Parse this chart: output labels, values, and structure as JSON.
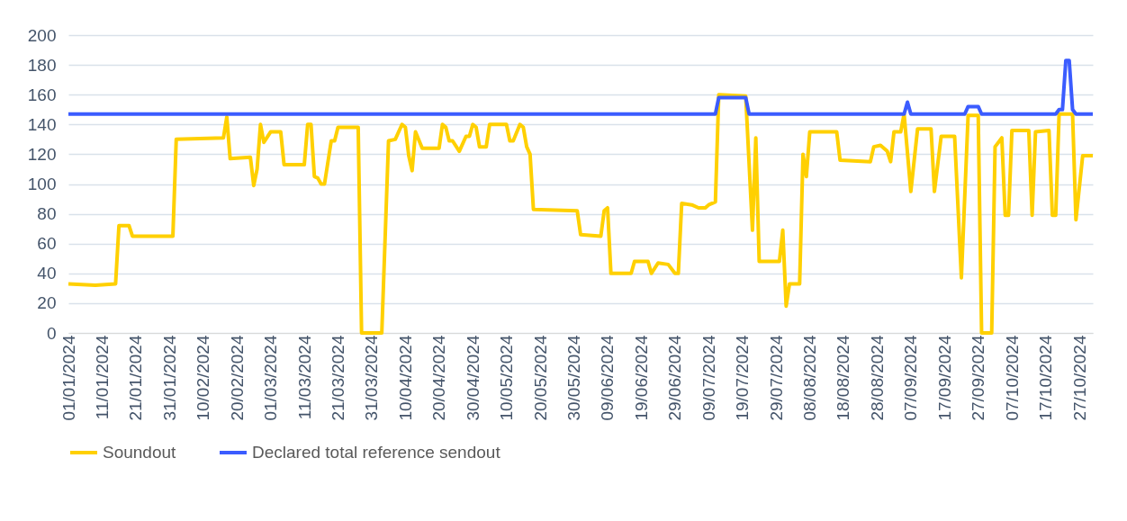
{
  "chart_data": {
    "type": "line",
    "xlim": [
      "2024-01-01",
      "2024-10-31"
    ],
    "ylim": [
      0,
      200
    ],
    "yticks": [
      0,
      20,
      40,
      60,
      80,
      100,
      120,
      140,
      160,
      180,
      200
    ],
    "xticks": [
      {
        "value": "2024-01-01",
        "label": "01/01/2024"
      },
      {
        "value": "2024-01-11",
        "label": "11/01/2024"
      },
      {
        "value": "2024-01-21",
        "label": "21/01/2024"
      },
      {
        "value": "2024-01-31",
        "label": "31/01/2024"
      },
      {
        "value": "2024-02-10",
        "label": "10/02/2024"
      },
      {
        "value": "2024-02-20",
        "label": "20/02/2024"
      },
      {
        "value": "2024-03-01",
        "label": "01/03/2024"
      },
      {
        "value": "2024-03-11",
        "label": "11/03/2024"
      },
      {
        "value": "2024-03-21",
        "label": "21/03/2024"
      },
      {
        "value": "2024-03-31",
        "label": "31/03/2024"
      },
      {
        "value": "2024-04-10",
        "label": "10/04/2024"
      },
      {
        "value": "2024-04-20",
        "label": "20/04/2024"
      },
      {
        "value": "2024-04-30",
        "label": "30/04/2024"
      },
      {
        "value": "2024-05-10",
        "label": "10/05/2024"
      },
      {
        "value": "2024-05-20",
        "label": "20/05/2024"
      },
      {
        "value": "2024-05-30",
        "label": "30/05/2024"
      },
      {
        "value": "2024-06-09",
        "label": "09/06/2024"
      },
      {
        "value": "2024-06-19",
        "label": "19/06/2024"
      },
      {
        "value": "2024-06-29",
        "label": "29/06/2024"
      },
      {
        "value": "2024-07-09",
        "label": "09/07/2024"
      },
      {
        "value": "2024-07-19",
        "label": "19/07/2024"
      },
      {
        "value": "2024-07-29",
        "label": "29/07/2024"
      },
      {
        "value": "2024-08-08",
        "label": "08/08/2024"
      },
      {
        "value": "2024-08-18",
        "label": "18/08/2024"
      },
      {
        "value": "2024-08-28",
        "label": "28/08/2024"
      },
      {
        "value": "2024-09-07",
        "label": "07/09/2024"
      },
      {
        "value": "2024-09-17",
        "label": "17/09/2024"
      },
      {
        "value": "2024-09-27",
        "label": "27/09/2024"
      },
      {
        "value": "2024-10-07",
        "label": "07/10/2024"
      },
      {
        "value": "2024-10-17",
        "label": "17/10/2024"
      },
      {
        "value": "2024-10-27",
        "label": "27/10/2024"
      }
    ],
    "grid": "y",
    "legend": "bottom",
    "line_style": "solid",
    "series": [
      {
        "name": "Soundout",
        "color": "#ffd000",
        "x": [
          "2024-01-01",
          "2024-01-09",
          "2024-01-15",
          "2024-01-16",
          "2024-01-19",
          "2024-01-20",
          "2024-02-01",
          "2024-02-02",
          "2024-02-16",
          "2024-02-17",
          "2024-02-18",
          "2024-02-24",
          "2024-02-25",
          "2024-02-26",
          "2024-02-27",
          "2024-02-28",
          "2024-03-01",
          "2024-03-04",
          "2024-03-05",
          "2024-03-11",
          "2024-03-12",
          "2024-03-13",
          "2024-03-14",
          "2024-03-15",
          "2024-03-16",
          "2024-03-17",
          "2024-03-19",
          "2024-03-20",
          "2024-03-21",
          "2024-03-27",
          "2024-03-28",
          "2024-04-03",
          "2024-04-05",
          "2024-04-07",
          "2024-04-09",
          "2024-04-10",
          "2024-04-11",
          "2024-04-12",
          "2024-04-13",
          "2024-04-15",
          "2024-04-20",
          "2024-04-21",
          "2024-04-22",
          "2024-04-23",
          "2024-04-24",
          "2024-04-26",
          "2024-04-28",
          "2024-04-29",
          "2024-04-30",
          "2024-05-01",
          "2024-05-02",
          "2024-05-04",
          "2024-05-05",
          "2024-05-10",
          "2024-05-11",
          "2024-05-12",
          "2024-05-14",
          "2024-05-15",
          "2024-05-16",
          "2024-05-17",
          "2024-05-18",
          "2024-05-31",
          "2024-06-01",
          "2024-06-07",
          "2024-06-08",
          "2024-06-09",
          "2024-06-10",
          "2024-06-16",
          "2024-06-17",
          "2024-06-21",
          "2024-06-22",
          "2024-06-24",
          "2024-06-27",
          "2024-06-29",
          "2024-06-30",
          "2024-07-01",
          "2024-07-04",
          "2024-07-06",
          "2024-07-08",
          "2024-07-09",
          "2024-07-11",
          "2024-07-12",
          "2024-07-20",
          "2024-07-22",
          "2024-07-23",
          "2024-07-24",
          "2024-07-30",
          "2024-07-31",
          "2024-08-01",
          "2024-08-02",
          "2024-08-05",
          "2024-08-06",
          "2024-08-07",
          "2024-08-08",
          "2024-08-16",
          "2024-08-17",
          "2024-08-26",
          "2024-08-27",
          "2024-08-29",
          "2024-08-31",
          "2024-09-01",
          "2024-09-02",
          "2024-09-04",
          "2024-09-05",
          "2024-09-07",
          "2024-09-09",
          "2024-09-13",
          "2024-09-14",
          "2024-09-16",
          "2024-09-20",
          "2024-09-22",
          "2024-09-24",
          "2024-09-27",
          "2024-09-28",
          "2024-10-01",
          "2024-10-02",
          "2024-10-04",
          "2024-10-05",
          "2024-10-06",
          "2024-10-07",
          "2024-10-12",
          "2024-10-13",
          "2024-10-14",
          "2024-10-18",
          "2024-10-19",
          "2024-10-20",
          "2024-10-21",
          "2024-10-25",
          "2024-10-26",
          "2024-10-28",
          "2024-10-31"
        ],
        "values": [
          33,
          32,
          33,
          72,
          72,
          65,
          65,
          130,
          131,
          145,
          117,
          118,
          99,
          110,
          140,
          128,
          135,
          135,
          113,
          113,
          140,
          140,
          105,
          104,
          100,
          100,
          129,
          129,
          138,
          138,
          0,
          0,
          129,
          130,
          140,
          138,
          119,
          109,
          135,
          124,
          124,
          140,
          138,
          129,
          129,
          122,
          132,
          132,
          140,
          138,
          125,
          125,
          140,
          140,
          129,
          129,
          140,
          138,
          125,
          120,
          83,
          82,
          66,
          65,
          82,
          84,
          40,
          40,
          48,
          48,
          40,
          47,
          46,
          40,
          40,
          87,
          86,
          84,
          84,
          86,
          88,
          160,
          159,
          69,
          131,
          48,
          48,
          69,
          18,
          33,
          33,
          120,
          105,
          135,
          135,
          116,
          115,
          125,
          126,
          122,
          115,
          135,
          135,
          147,
          95,
          137,
          137,
          95,
          132,
          132,
          37,
          146,
          146,
          0,
          0,
          125,
          131,
          79,
          79,
          136,
          136,
          79,
          135,
          136,
          79,
          79,
          147,
          147,
          76,
          119,
          119
        ]
      },
      {
        "name": "Declared total reference sendout",
        "color": "#3b5cff",
        "x": [
          "2024-01-01",
          "2024-07-11",
          "2024-07-12",
          "2024-07-20",
          "2024-07-21",
          "2024-09-05",
          "2024-09-06",
          "2024-09-07",
          "2024-09-23",
          "2024-09-24",
          "2024-09-27",
          "2024-09-28",
          "2024-10-20",
          "2024-10-21",
          "2024-10-22",
          "2024-10-23",
          "2024-10-24",
          "2024-10-25",
          "2024-10-26",
          "2024-10-31"
        ],
        "values": [
          147,
          147,
          158,
          158,
          147,
          147,
          155,
          147,
          147,
          152,
          152,
          147,
          147,
          150,
          150,
          183,
          183,
          150,
          147,
          147
        ]
      }
    ]
  }
}
